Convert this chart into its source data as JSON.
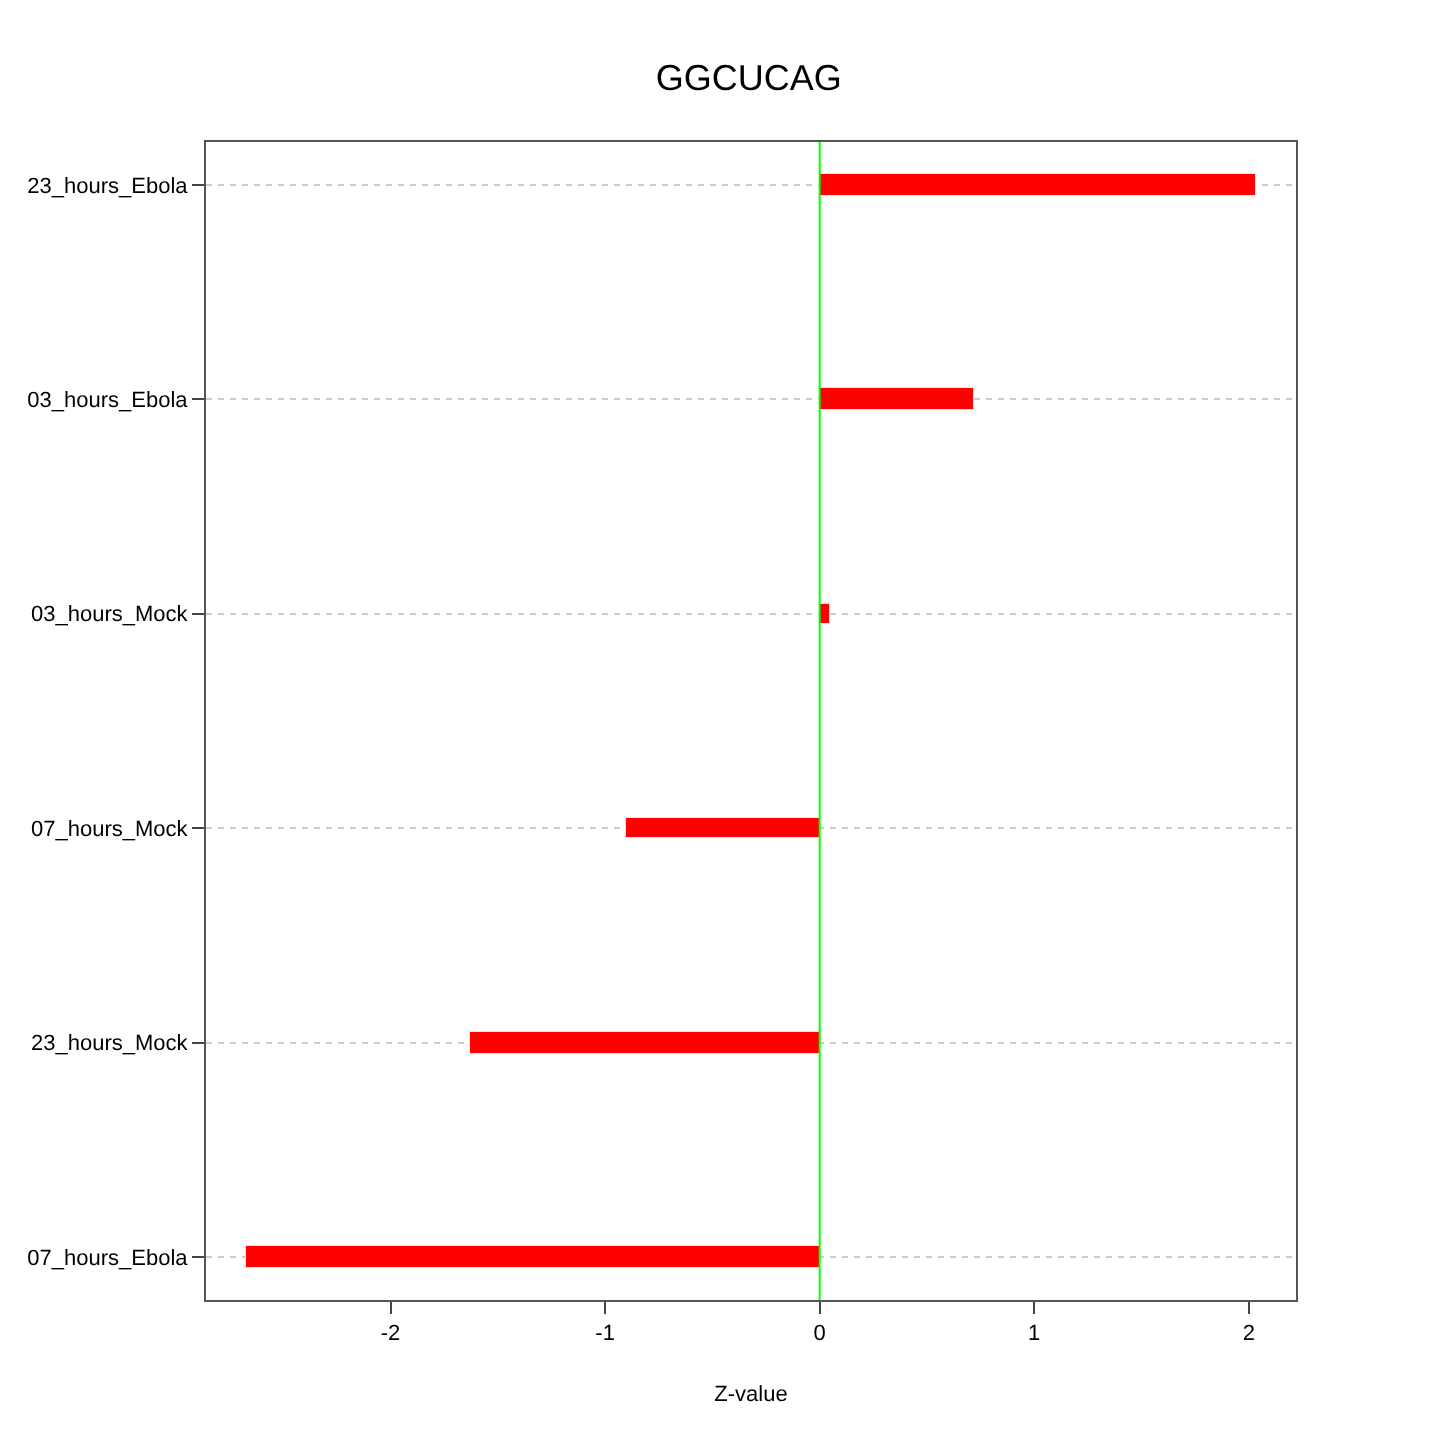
{
  "chart_data": {
    "type": "bar",
    "orientation": "horizontal",
    "title": "GGCUCAG",
    "xlabel": "Z-value",
    "categories": [
      "23_hours_Ebola",
      "03_hours_Ebola",
      "03_hours_Mock",
      "07_hours_Mock",
      "23_hours_Mock",
      "07_hours_Ebola"
    ],
    "values": [
      2.03,
      0.72,
      0.05,
      -0.9,
      -1.63,
      -2.67
    ],
    "color": "#ff0000",
    "xlim": [
      -2.86,
      2.22
    ],
    "xticks": [
      -2,
      -1,
      0,
      1,
      2
    ],
    "grid": "y",
    "ref_lines": [
      {
        "axis": "x",
        "value": 0,
        "color": "#00ff00"
      }
    ]
  }
}
